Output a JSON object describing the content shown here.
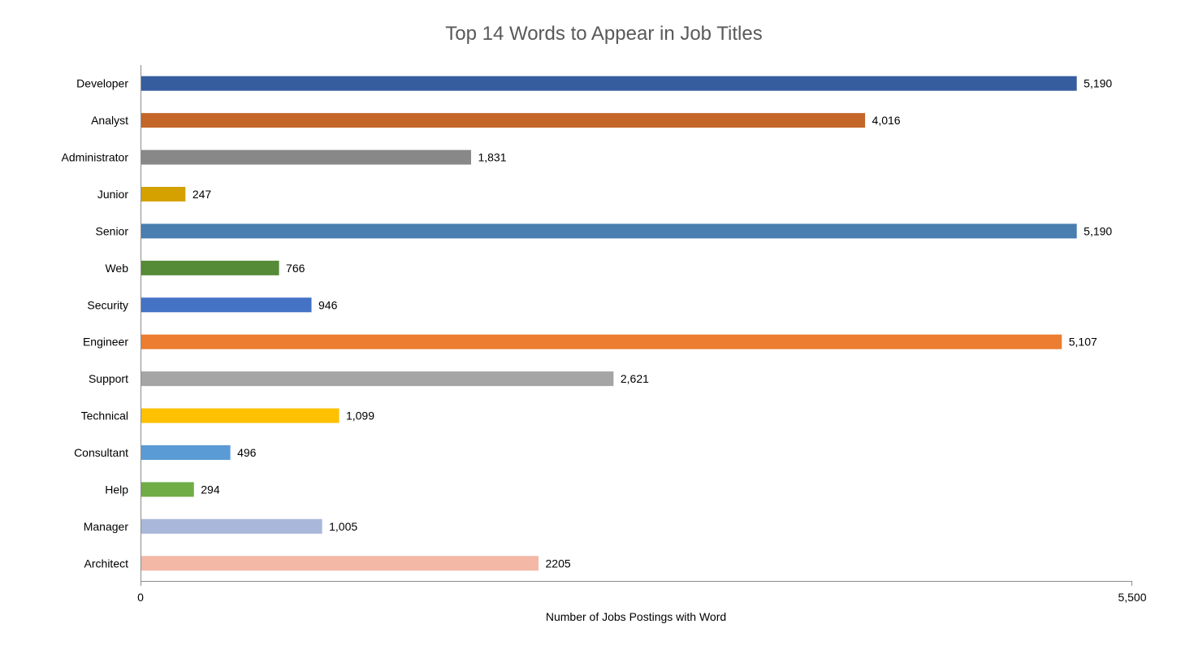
{
  "chart_data": {
    "type": "bar",
    "orientation": "horizontal",
    "title": "Top 14 Words to Appear in Job Titles",
    "xlabel": "Number of Jobs Postings with Word",
    "ylabel": "",
    "xlim": [
      0,
      5500
    ],
    "x_ticks": [
      "0",
      "5,500"
    ],
    "grid": false,
    "legend": "none",
    "categories": [
      "Developer",
      "Analyst",
      "Administrator",
      "Junior",
      "Senior",
      "Web",
      "Security",
      "Engineer",
      "Support",
      "Technical",
      "Consultant",
      "Help",
      "Manager",
      "Architect"
    ],
    "values": [
      5190,
      4016,
      1831,
      247,
      5190,
      766,
      946,
      5107,
      2621,
      1099,
      496,
      294,
      1005,
      2205
    ],
    "value_labels": [
      "5,190",
      "4,016",
      "1,831",
      "247",
      "5,190",
      "766",
      "946",
      "5,107",
      "2,621",
      "1,099",
      "496",
      "294",
      "1,005",
      "2205"
    ],
    "colors": [
      "#365E9F",
      "#C4662A",
      "#888888",
      "#D4A100",
      "#4A7EB0",
      "#558A36",
      "#4472C4",
      "#ED7D31",
      "#A5A5A5",
      "#FFC000",
      "#5B9BD5",
      "#70AD47",
      "#A9B7DB",
      "#F4B8A7"
    ]
  }
}
